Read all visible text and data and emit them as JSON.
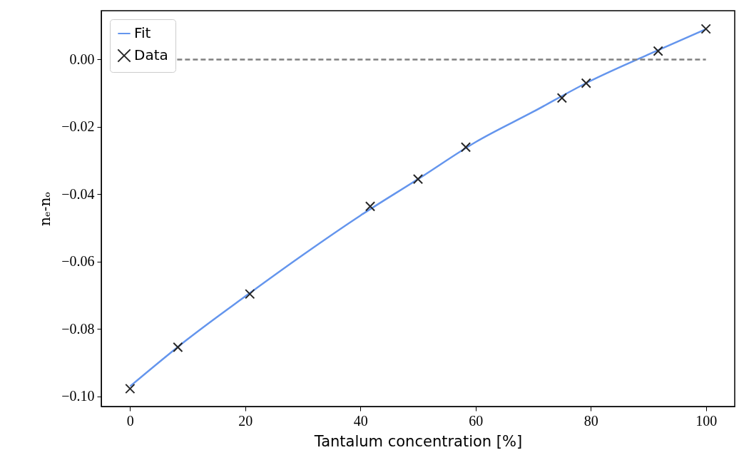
{
  "chart_data": {
    "type": "line",
    "xlabel": "Tantalum concentration [%]",
    "ylabel": "nₑ-nₒ",
    "xlim": [
      -5,
      105
    ],
    "ylim": [
      -0.103,
      0.0145
    ],
    "xticks": [
      0,
      20,
      40,
      60,
      80,
      100
    ],
    "yticks": [
      {
        "value": -0.1,
        "label": "−0.10"
      },
      {
        "value": -0.08,
        "label": "−0.08"
      },
      {
        "value": -0.06,
        "label": "−0.06"
      },
      {
        "value": -0.04,
        "label": "−0.04"
      },
      {
        "value": -0.02,
        "label": "−0.02"
      },
      {
        "value": 0,
        "label": "0.00"
      }
    ],
    "grid": false,
    "legend": "top left",
    "series": [
      {
        "name": "Fit",
        "type": "line",
        "color": "#6495ed",
        "x": [
          0,
          10,
          20,
          30,
          40,
          50,
          60,
          70,
          80,
          90,
          100
        ],
        "values": [
          -0.097,
          -0.083,
          -0.0703,
          -0.058,
          -0.0463,
          -0.0355,
          -0.0245,
          -0.0155,
          -0.0063,
          0.0015,
          0.009
        ]
      },
      {
        "name": "Data",
        "type": "scatter",
        "marker": "cross",
        "color": "#262626",
        "x": [
          0,
          8.3,
          20.8,
          41.7,
          50,
          58.3,
          75,
          79.2,
          91.7,
          100
        ],
        "values": [
          -0.0977,
          -0.0854,
          -0.0696,
          -0.0436,
          -0.0355,
          -0.026,
          -0.0114,
          -0.007,
          0.0025,
          0.0091
        ]
      }
    ],
    "ref_lines": [
      {
        "axis": "y",
        "value": 0,
        "color": "#808080",
        "line_style": "dashed"
      }
    ]
  }
}
